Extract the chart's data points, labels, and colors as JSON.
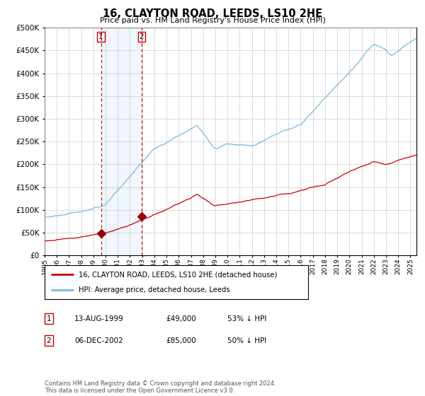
{
  "title": "16, CLAYTON ROAD, LEEDS, LS10 2HE",
  "subtitle": "Price paid vs. HM Land Registry's House Price Index (HPI)",
  "legend_line1": "16, CLAYTON ROAD, LEEDS, LS10 2HE (detached house)",
  "legend_line2": "HPI: Average price, detached house, Leeds",
  "transaction1_date": "13-AUG-1999",
  "transaction1_price": 49000,
  "transaction1_label": "1",
  "transaction1_pct": "53% ↓ HPI",
  "transaction2_date": "06-DEC-2002",
  "transaction2_price": 85000,
  "transaction2_label": "2",
  "transaction2_pct": "50% ↓ HPI",
  "footer": "Contains HM Land Registry data © Crown copyright and database right 2024.\nThis data is licensed under the Open Government Licence v3.0.",
  "hpi_color": "#7ab8d9",
  "price_color": "#cc0000",
  "marker_color": "#990000",
  "vline_color": "#cc0000",
  "shade_color": "#d6e8f5",
  "grid_color": "#cccccc",
  "background_color": "#ffffff",
  "ylim_max": 500000,
  "ylim_min": 0,
  "t1_year": 1999,
  "t1_month": 8,
  "t1_day": 13,
  "t2_year": 2002,
  "t2_month": 12,
  "t2_day": 6
}
